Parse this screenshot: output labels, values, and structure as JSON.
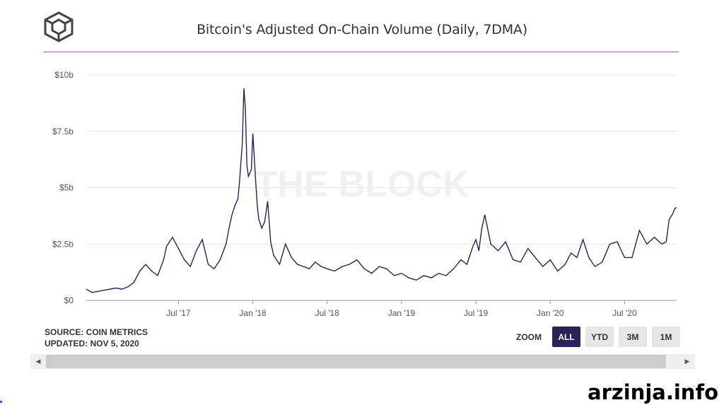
{
  "brand": {
    "logo": "the-block-cube-logo"
  },
  "source_text": "SOURCE: COIN METRICS",
  "updated_text": "UPDATED: NOV 5, 2020",
  "zoom": {
    "label": "ZOOM",
    "buttons": [
      "ALL",
      "YTD",
      "3M",
      "1M"
    ],
    "active": "ALL"
  },
  "watermark": "arzinja.info",
  "colors": {
    "line": "#2c2159",
    "accent": "#b44ad0",
    "active_button": "#2c2159"
  },
  "chart_data": {
    "type": "line",
    "title": "Bitcoin's Adjusted On-Chain Volume (Daily, 7DMA)",
    "background_text": "THE BLOCK",
    "xlabel": "",
    "ylabel": "",
    "ylim": [
      0,
      10
    ],
    "y_ticks": [
      0,
      2.5,
      5,
      7.5,
      10
    ],
    "y_tick_labels": [
      "$0",
      "$2.5b",
      "$5b",
      "$7.5b",
      "$10b"
    ],
    "x_ticks": [
      2017.5,
      2018.0,
      2018.5,
      2019.0,
      2019.5,
      2020.0,
      2020.5
    ],
    "x_tick_labels": [
      "Jul '17",
      "Jan '18",
      "Jul '18",
      "Jan '19",
      "Jul '19",
      "Jan '20",
      "Jul '20"
    ],
    "xlim": [
      2016.88,
      2020.85
    ],
    "series": [
      {
        "name": "Adjusted On-Chain Volume (7DMA, $b)",
        "x": [
          2016.88,
          2016.92,
          2016.96,
          2017.0,
          2017.04,
          2017.08,
          2017.12,
          2017.16,
          2017.2,
          2017.24,
          2017.28,
          2017.32,
          2017.36,
          2017.4,
          2017.42,
          2017.46,
          2017.5,
          2017.54,
          2017.58,
          2017.62,
          2017.66,
          2017.7,
          2017.74,
          2017.78,
          2017.82,
          2017.84,
          2017.86,
          2017.88,
          2017.9,
          2017.91,
          2017.93,
          2017.94,
          2017.95,
          2017.96,
          2017.97,
          2017.99,
          2018.0,
          2018.02,
          2018.03,
          2018.04,
          2018.06,
          2018.08,
          2018.1,
          2018.12,
          2018.14,
          2018.16,
          2018.18,
          2018.22,
          2018.26,
          2018.3,
          2018.34,
          2018.38,
          2018.42,
          2018.46,
          2018.5,
          2018.55,
          2018.6,
          2018.65,
          2018.7,
          2018.75,
          2018.8,
          2018.85,
          2018.9,
          2018.95,
          2019.0,
          2019.05,
          2019.1,
          2019.15,
          2019.2,
          2019.25,
          2019.3,
          2019.35,
          2019.4,
          2019.44,
          2019.48,
          2019.5,
          2019.52,
          2019.54,
          2019.56,
          2019.6,
          2019.65,
          2019.7,
          2019.75,
          2019.8,
          2019.85,
          2019.9,
          2019.95,
          2020.0,
          2020.05,
          2020.1,
          2020.14,
          2020.18,
          2020.22,
          2020.26,
          2020.3,
          2020.35,
          2020.4,
          2020.45,
          2020.5,
          2020.55,
          2020.6,
          2020.65,
          2020.7,
          2020.75,
          2020.78,
          2020.8,
          2020.82,
          2020.84,
          2020.85
        ],
        "values": [
          0.5,
          0.35,
          0.4,
          0.45,
          0.5,
          0.55,
          0.5,
          0.6,
          0.8,
          1.3,
          1.6,
          1.3,
          1.1,
          1.8,
          2.4,
          2.8,
          2.3,
          1.8,
          1.5,
          2.2,
          2.7,
          1.6,
          1.4,
          1.8,
          2.5,
          3.2,
          3.8,
          4.2,
          4.5,
          5.2,
          7.0,
          9.4,
          8.5,
          6.0,
          5.5,
          5.8,
          7.4,
          5.2,
          4.2,
          3.6,
          3.2,
          3.5,
          4.4,
          2.6,
          2.0,
          1.8,
          1.6,
          2.5,
          1.9,
          1.6,
          1.5,
          1.4,
          1.7,
          1.5,
          1.4,
          1.3,
          1.5,
          1.6,
          1.8,
          1.4,
          1.2,
          1.5,
          1.4,
          1.1,
          1.2,
          1.0,
          0.9,
          1.1,
          1.0,
          1.2,
          1.1,
          1.4,
          1.8,
          1.6,
          2.4,
          2.7,
          2.2,
          3.2,
          3.8,
          2.5,
          2.2,
          2.6,
          1.8,
          1.7,
          2.3,
          1.9,
          1.5,
          1.8,
          1.3,
          1.6,
          2.1,
          1.9,
          2.7,
          1.9,
          1.5,
          1.7,
          2.5,
          2.6,
          1.9,
          1.9,
          3.1,
          2.5,
          2.8,
          2.5,
          2.6,
          3.6,
          3.8,
          4.1,
          4.1
        ]
      }
    ]
  }
}
